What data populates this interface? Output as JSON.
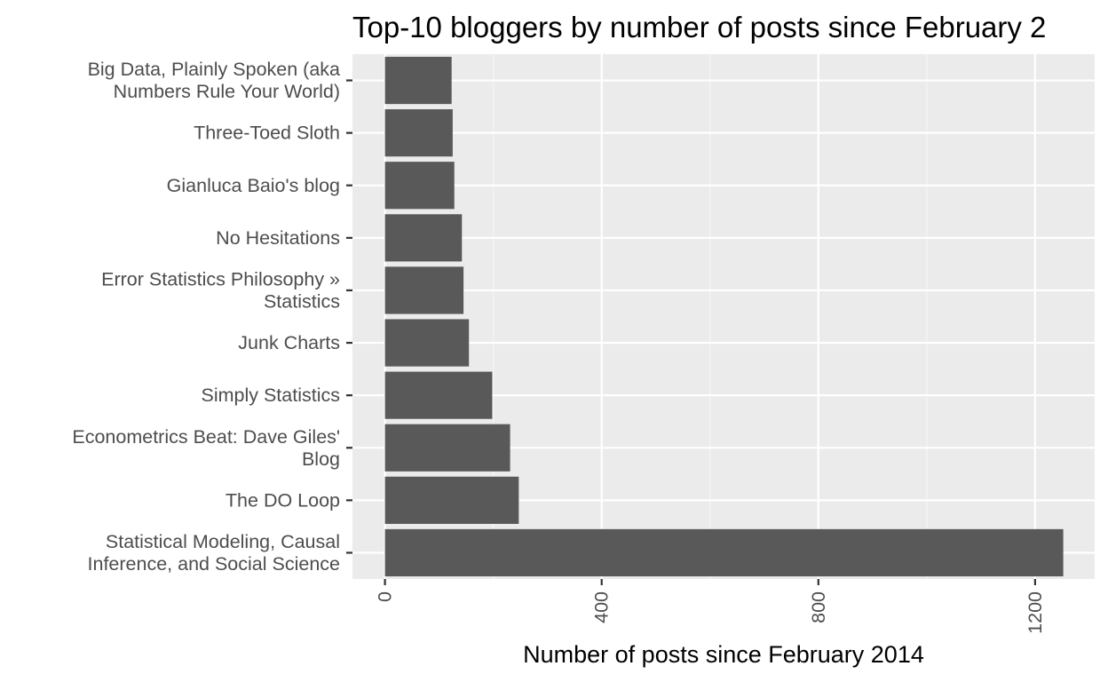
{
  "chart_data": {
    "type": "bar",
    "orientation": "horizontal",
    "title": "Top-10 bloggers by number of posts since February 2",
    "xlabel": "Number of posts since February 2014",
    "ylabel": "",
    "xlim": [
      -60,
      1310
    ],
    "xticks": [
      "0",
      "400",
      "800",
      "1200"
    ],
    "grid": true,
    "legend": "none",
    "categories": [
      [
        "Big Data, Plainly Spoken (aka",
        "Numbers Rule Your World)"
      ],
      [
        "Three-Toed Sloth"
      ],
      [
        "Gianluca Baio's blog"
      ],
      [
        "No Hesitations"
      ],
      [
        "Error Statistics Philosophy »",
        "Statistics"
      ],
      [
        "Junk Charts"
      ],
      [
        "Simply Statistics"
      ],
      [
        "Econometrics Beat: Dave Giles'",
        "Blog"
      ],
      [
        "The DO Loop"
      ],
      [
        "Statistical Modeling, Causal",
        "Inference, and Social Science"
      ]
    ],
    "values": [
      123,
      125,
      128,
      142,
      145,
      155,
      198,
      231,
      247,
      1252
    ],
    "colors": {
      "bar": "#595959",
      "panel": "#ebebeb",
      "grid_major": "#ffffff",
      "grid_minor": "#f5f5f5",
      "axis_text": "#4d4d4d",
      "tick": "#333333"
    }
  }
}
